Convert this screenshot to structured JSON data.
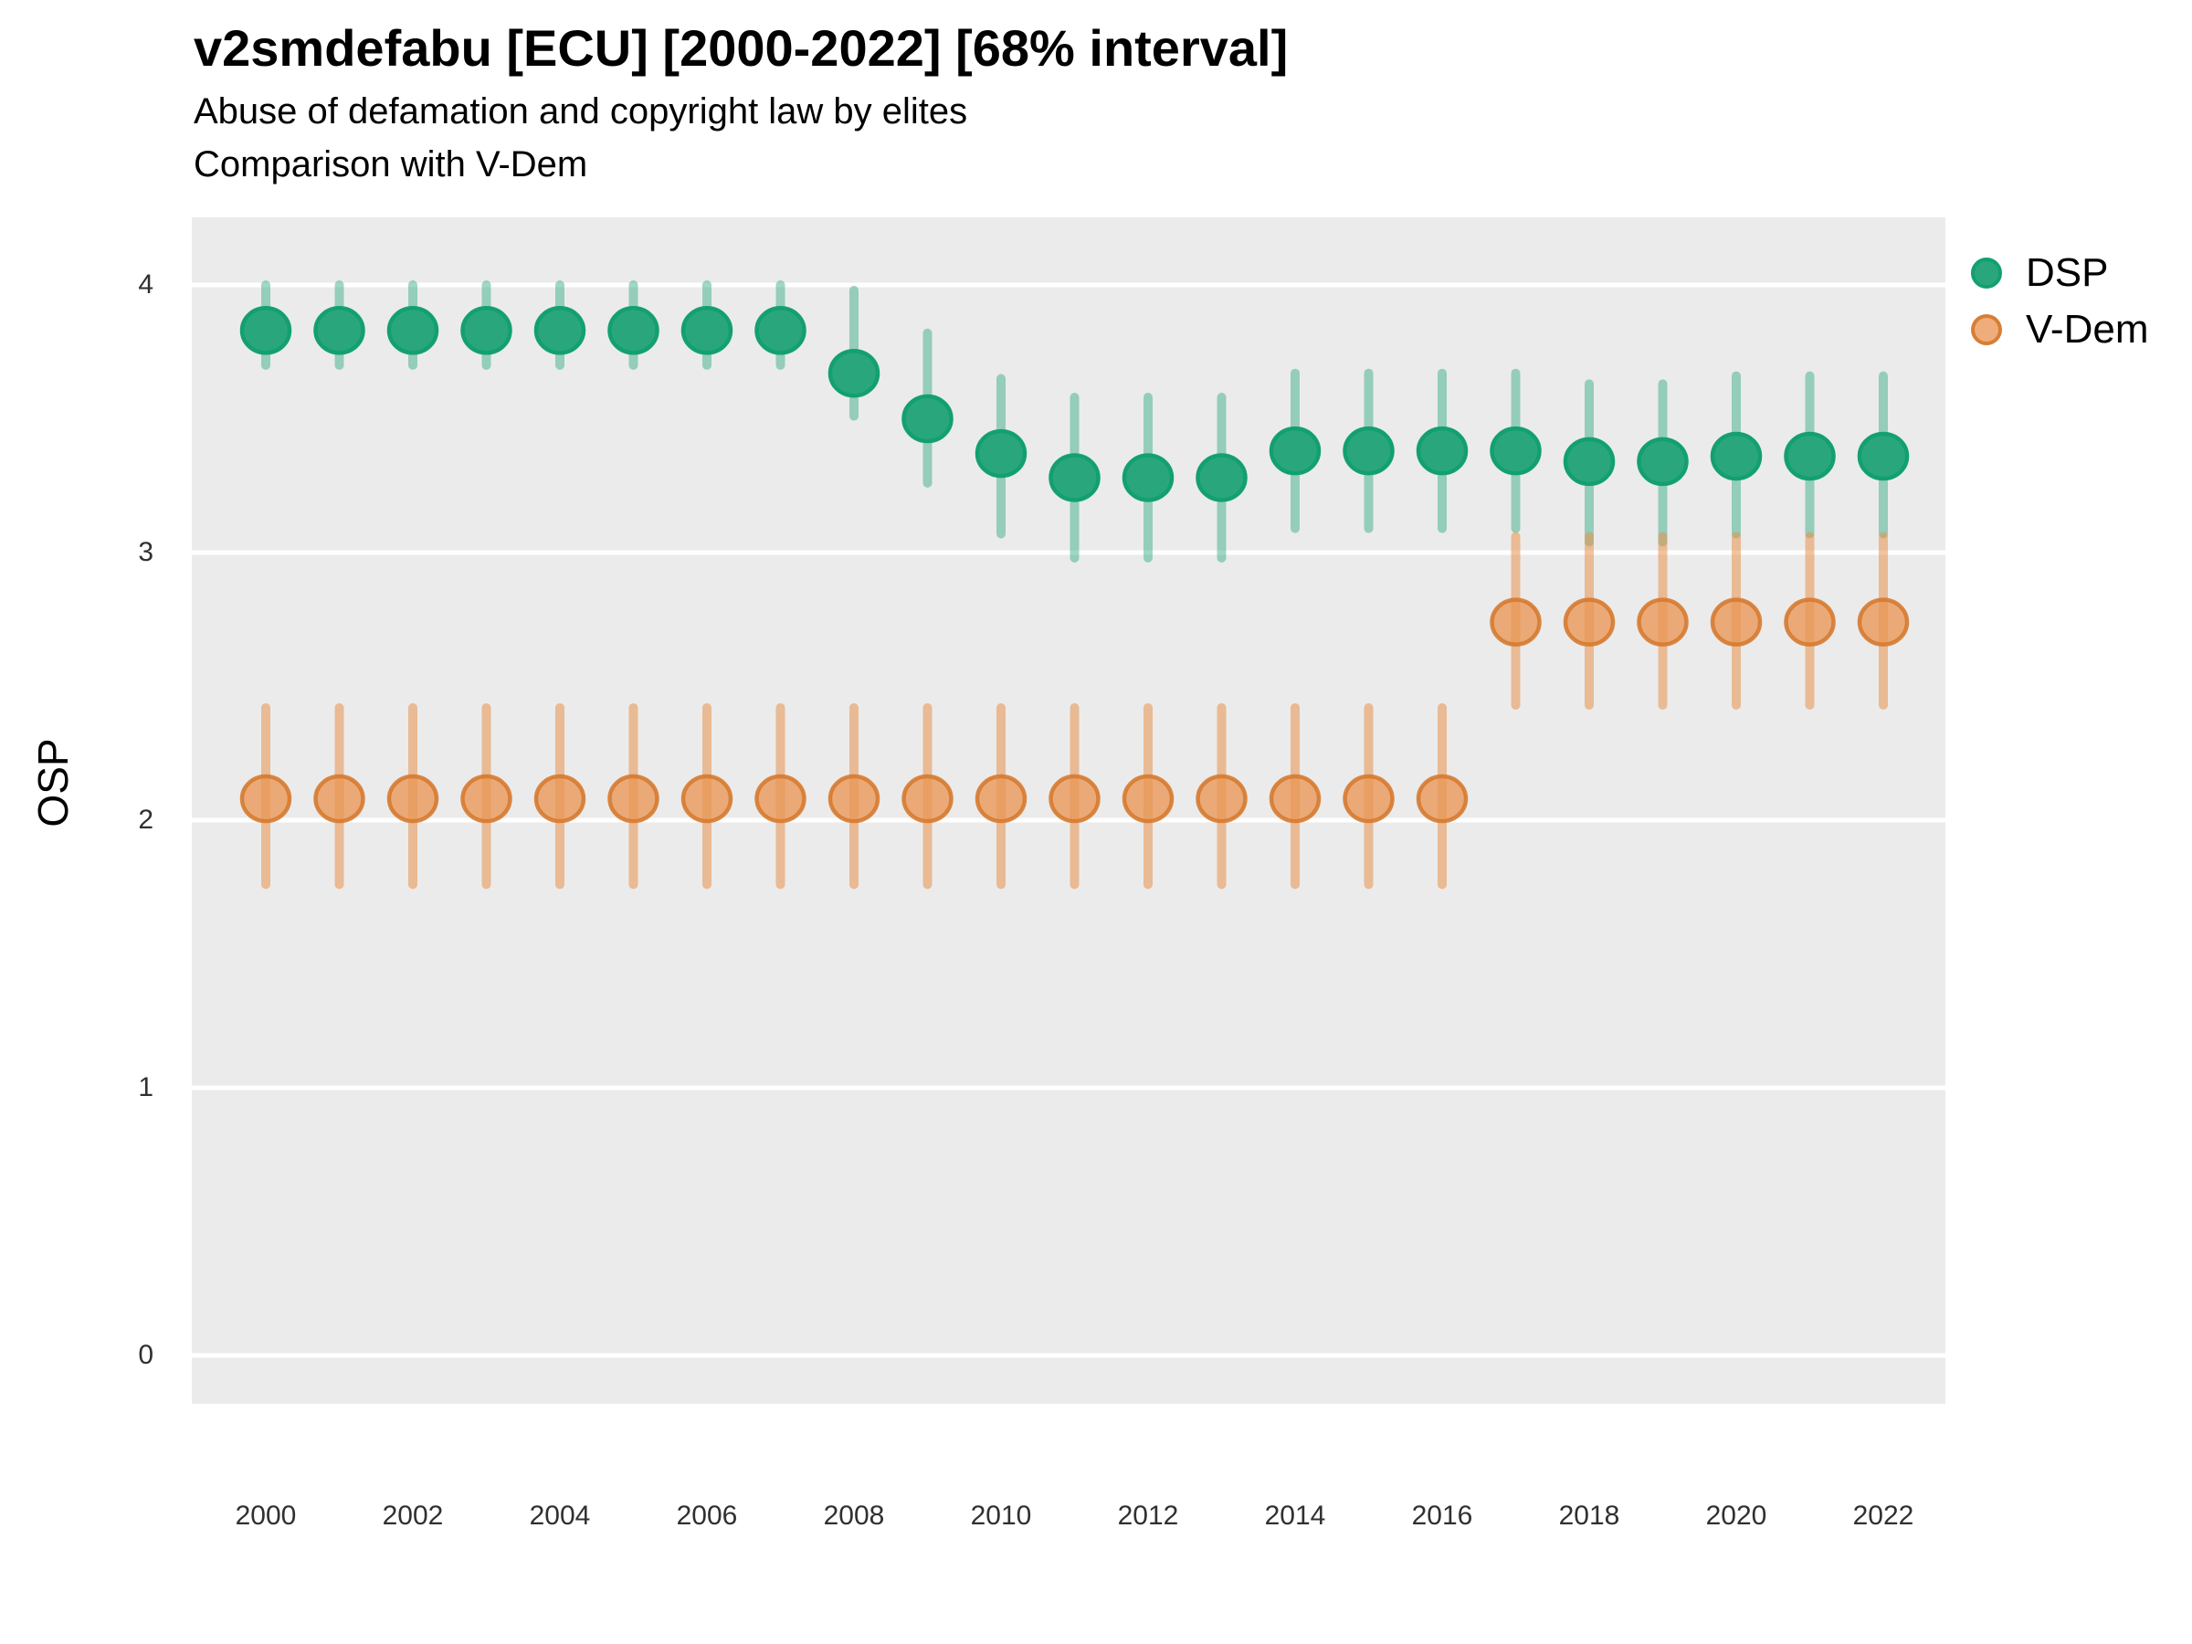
{
  "header": {
    "title": "v2smdefabu [ECU] [2000-2022] [68% interval]",
    "subtitle1": "Abuse of defamation and copyright law by elites",
    "subtitle2": "Comparison with V-Dem"
  },
  "axes": {
    "y_label": "OSP",
    "y_ticks": [
      0,
      1,
      2,
      3,
      4
    ],
    "x_ticks": [
      2000,
      2002,
      2004,
      2006,
      2008,
      2010,
      2012,
      2014,
      2016,
      2018,
      2020,
      2022
    ]
  },
  "legend": {
    "items": [
      {
        "label": "DSP"
      },
      {
        "label": "V-Dem"
      }
    ]
  },
  "style_colors": {
    "panel_background": "#ebebeb",
    "gridline": "#ffffff",
    "dsp_green": "#2aa67d",
    "dsp_green_ring": "#13a071",
    "dsp_green_line": "rgba(43,168,126,0.45)",
    "vdem_orange": "rgba(233,150,85,0.78)",
    "vdem_orange_ring": "rgba(214,122,48,0.9)",
    "vdem_orange_line": "rgba(232,145,74,0.55)"
  },
  "chart_data": {
    "type": "pointrange",
    "title": "v2smdefabu [ECU] [2000-2022] [68% interval]",
    "subtitle": "Abuse of defamation and copyright law by elites — Comparison with V-Dem",
    "interval": "68%",
    "xlabel": "",
    "ylabel": "OSP",
    "ylim": [
      -0.17,
      4.25
    ],
    "x_range": [
      2000,
      2022
    ],
    "grid": "major-horizontal-only",
    "legend_position": "right",
    "series": [
      {
        "name": "DSP",
        "point_fill": "#2aa67d",
        "point_stroke": "#13a071",
        "line_color": "rgba(43,168,126,0.45)",
        "points": [
          {
            "year": 2000,
            "value": 3.83,
            "lo": 3.7,
            "hi": 4.0
          },
          {
            "year": 2001,
            "value": 3.83,
            "lo": 3.7,
            "hi": 4.0
          },
          {
            "year": 2002,
            "value": 3.83,
            "lo": 3.7,
            "hi": 4.0
          },
          {
            "year": 2003,
            "value": 3.83,
            "lo": 3.7,
            "hi": 4.0
          },
          {
            "year": 2004,
            "value": 3.83,
            "lo": 3.7,
            "hi": 4.0
          },
          {
            "year": 2005,
            "value": 3.83,
            "lo": 3.7,
            "hi": 4.0
          },
          {
            "year": 2006,
            "value": 3.83,
            "lo": 3.7,
            "hi": 4.0
          },
          {
            "year": 2007,
            "value": 3.83,
            "lo": 3.7,
            "hi": 4.0
          },
          {
            "year": 2008,
            "value": 3.67,
            "lo": 3.51,
            "hi": 3.98
          },
          {
            "year": 2009,
            "value": 3.5,
            "lo": 3.26,
            "hi": 3.82
          },
          {
            "year": 2010,
            "value": 3.37,
            "lo": 3.07,
            "hi": 3.65
          },
          {
            "year": 2011,
            "value": 3.28,
            "lo": 2.98,
            "hi": 3.58
          },
          {
            "year": 2012,
            "value": 3.28,
            "lo": 2.98,
            "hi": 3.58
          },
          {
            "year": 2013,
            "value": 3.28,
            "lo": 2.98,
            "hi": 3.58
          },
          {
            "year": 2014,
            "value": 3.38,
            "lo": 3.09,
            "hi": 3.67
          },
          {
            "year": 2015,
            "value": 3.38,
            "lo": 3.09,
            "hi": 3.67
          },
          {
            "year": 2016,
            "value": 3.38,
            "lo": 3.09,
            "hi": 3.67
          },
          {
            "year": 2017,
            "value": 3.38,
            "lo": 3.09,
            "hi": 3.67
          },
          {
            "year": 2018,
            "value": 3.34,
            "lo": 3.04,
            "hi": 3.63
          },
          {
            "year": 2019,
            "value": 3.34,
            "lo": 3.04,
            "hi": 3.63
          },
          {
            "year": 2020,
            "value": 3.36,
            "lo": 3.07,
            "hi": 3.66
          },
          {
            "year": 2021,
            "value": 3.36,
            "lo": 3.07,
            "hi": 3.66
          },
          {
            "year": 2022,
            "value": 3.36,
            "lo": 3.07,
            "hi": 3.66
          }
        ]
      },
      {
        "name": "V-Dem",
        "point_fill": "rgba(233,150,85,0.78)",
        "point_stroke": "rgba(214,122,48,0.9)",
        "line_color": "rgba(232,145,74,0.55)",
        "points": [
          {
            "year": 2000,
            "value": 2.08,
            "lo": 1.76,
            "hi": 2.42
          },
          {
            "year": 2001,
            "value": 2.08,
            "lo": 1.76,
            "hi": 2.42
          },
          {
            "year": 2002,
            "value": 2.08,
            "lo": 1.76,
            "hi": 2.42
          },
          {
            "year": 2003,
            "value": 2.08,
            "lo": 1.76,
            "hi": 2.42
          },
          {
            "year": 2004,
            "value": 2.08,
            "lo": 1.76,
            "hi": 2.42
          },
          {
            "year": 2005,
            "value": 2.08,
            "lo": 1.76,
            "hi": 2.42
          },
          {
            "year": 2006,
            "value": 2.08,
            "lo": 1.76,
            "hi": 2.42
          },
          {
            "year": 2007,
            "value": 2.08,
            "lo": 1.76,
            "hi": 2.42
          },
          {
            "year": 2008,
            "value": 2.08,
            "lo": 1.76,
            "hi": 2.42
          },
          {
            "year": 2009,
            "value": 2.08,
            "lo": 1.76,
            "hi": 2.42
          },
          {
            "year": 2010,
            "value": 2.08,
            "lo": 1.76,
            "hi": 2.42
          },
          {
            "year": 2011,
            "value": 2.08,
            "lo": 1.76,
            "hi": 2.42
          },
          {
            "year": 2012,
            "value": 2.08,
            "lo": 1.76,
            "hi": 2.42
          },
          {
            "year": 2013,
            "value": 2.08,
            "lo": 1.76,
            "hi": 2.42
          },
          {
            "year": 2014,
            "value": 2.08,
            "lo": 1.76,
            "hi": 2.42
          },
          {
            "year": 2015,
            "value": 2.08,
            "lo": 1.76,
            "hi": 2.42
          },
          {
            "year": 2016,
            "value": 2.08,
            "lo": 1.76,
            "hi": 2.42
          },
          {
            "year": 2017,
            "value": 2.74,
            "lo": 2.43,
            "hi": 3.06
          },
          {
            "year": 2018,
            "value": 2.74,
            "lo": 2.43,
            "hi": 3.06
          },
          {
            "year": 2019,
            "value": 2.74,
            "lo": 2.43,
            "hi": 3.06
          },
          {
            "year": 2020,
            "value": 2.74,
            "lo": 2.43,
            "hi": 3.06
          },
          {
            "year": 2021,
            "value": 2.74,
            "lo": 2.43,
            "hi": 3.06
          },
          {
            "year": 2022,
            "value": 2.74,
            "lo": 2.43,
            "hi": 3.06
          }
        ]
      }
    ]
  }
}
